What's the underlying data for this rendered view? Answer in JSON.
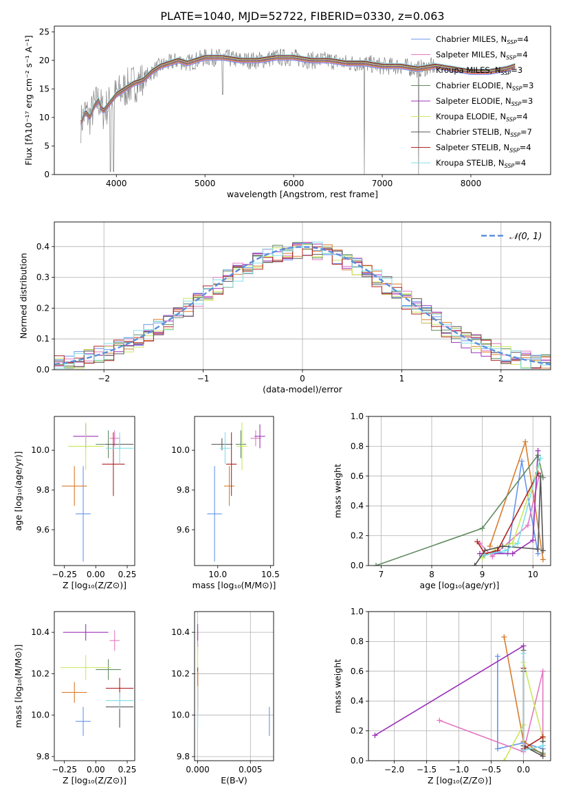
{
  "figure": {
    "title": "PLATE=1040, MJD=52722, FIBERID=0330, z=0.063"
  },
  "chart_data": [
    {
      "id": "spectrum",
      "type": "line",
      "xlabel": "wavelength [Angstrom, rest frame]",
      "ylabel": "Flux [fλ10⁻¹⁷ erg cm⁻² s⁻¹ A⁻¹]",
      "xlim": [
        3300,
        8900
      ],
      "ylim": [
        0,
        26
      ],
      "xticks": [
        "4000",
        "5000",
        "6000",
        "7000",
        "8000"
      ],
      "xtick_values": [
        4000,
        5000,
        6000,
        7000,
        8000
      ],
      "yticks": [
        "0",
        "5",
        "10",
        "15",
        "20",
        "25"
      ],
      "ytick_values": [
        0,
        5,
        10,
        15,
        20,
        25
      ],
      "grid": false,
      "legend_position": "top-right",
      "data_x": [
        3600,
        3650,
        3700,
        3750,
        3800,
        3850,
        3900,
        3950,
        4000,
        4100,
        4200,
        4300,
        4400,
        4500,
        4600,
        4700,
        4800,
        4900,
        5000,
        5200,
        5400,
        5600,
        5800,
        6000,
        6200,
        6400,
        6600,
        6800,
        7000,
        7200,
        7400,
        7600,
        7800,
        8000,
        8200,
        8400,
        8500
      ],
      "data_y": [
        9,
        11,
        10,
        12,
        13,
        11,
        12,
        13,
        14,
        15,
        16,
        16.5,
        18,
        19,
        19.5,
        20,
        19.5,
        20,
        20.5,
        20.5,
        20,
        20,
        20.5,
        20.5,
        20,
        20,
        19.5,
        19.5,
        19,
        19,
        18.5,
        19,
        18.5,
        18,
        18,
        18.5,
        19
      ],
      "series": [
        {
          "name": "Chabrier MILES, N",
          "sub": "SSP",
          "suffix": "=4",
          "color": "#6495ed"
        },
        {
          "name": "Salpeter MILES, N",
          "sub": "SSP",
          "suffix": "=4",
          "color": "#e377c2"
        },
        {
          "name": "Kroupa MILES, N",
          "sub": "SSP",
          "suffix": "=3",
          "color": "#d97b2b"
        },
        {
          "name": "Chabrier ELODIE, N",
          "sub": "SSP",
          "suffix": "=3",
          "color": "#5f8a5f"
        },
        {
          "name": "Salpeter ELODIE, N",
          "sub": "SSP",
          "suffix": "=3",
          "color": "#9b30b8"
        },
        {
          "name": "Kroupa ELODIE, N",
          "sub": "SSP",
          "suffix": "=4",
          "color": "#c8e85a"
        },
        {
          "name": "Chabrier STELIB, N",
          "sub": "SSP",
          "suffix": "=7",
          "color": "#555555"
        },
        {
          "name": "Salpeter STELIB, N",
          "sub": "SSP",
          "suffix": "=4",
          "color": "#b22222"
        },
        {
          "name": "Kroupa STELIB, N",
          "sub": "SSP",
          "suffix": "=4",
          "color": "#7fdfe8"
        }
      ],
      "data_color": "#808080"
    },
    {
      "id": "residuals",
      "type": "line",
      "xlabel": "(data-model)/error",
      "ylabel": "Normed distribution",
      "xlim": [
        -2.5,
        2.5
      ],
      "ylim": [
        0,
        0.48
      ],
      "xticks": [
        "−2",
        "−1",
        "0",
        "1",
        "2"
      ],
      "xtick_values": [
        -2,
        -1,
        0,
        1,
        2
      ],
      "yticks": [
        "0.0",
        "0.1",
        "0.2",
        "0.3",
        "0.4"
      ],
      "ytick_values": [
        0,
        0.1,
        0.2,
        0.3,
        0.4
      ],
      "grid": true,
      "legend": "𝒩(0, 1)",
      "legend_position": "top-right",
      "normal_curve_color": "#5b8fdb"
    },
    {
      "id": "age-vs-Z",
      "type": "scatter",
      "xlabel": "Z [log₁₀(Z/Z⊙)]",
      "ylabel": "age  [log₁₀(age/yr)]",
      "xlim": [
        -0.33,
        0.31
      ],
      "ylim": [
        9.42,
        10.17
      ],
      "xticks": [
        "−0.25",
        "0.00",
        "0.25"
      ],
      "xtick_values": [
        -0.25,
        0,
        0.25
      ],
      "yticks": [
        "9.6",
        "9.8",
        "10.0"
      ],
      "ytick_values": [
        9.6,
        9.8,
        10.0
      ],
      "grid": false,
      "points": [
        {
          "x": -0.1,
          "y": 9.68,
          "xerr": 0.06,
          "yerr": 0.24,
          "color": "#6495ed"
        },
        {
          "x": 0.15,
          "y": 10.06,
          "xerr": 0.04,
          "yerr": 0.04,
          "color": "#e377c2"
        },
        {
          "x": -0.17,
          "y": 9.82,
          "xerr": 0.1,
          "yerr": 0.1,
          "color": "#d97b2b"
        },
        {
          "x": 0.1,
          "y": 10.03,
          "xerr": 0.1,
          "yerr": 0.07,
          "color": "#5f8a5f"
        },
        {
          "x": -0.08,
          "y": 10.07,
          "xerr": 0.1,
          "yerr": 0.06,
          "color": "#9b30b8"
        },
        {
          "x": -0.08,
          "y": 10.02,
          "xerr": 0.14,
          "yerr": 0.12,
          "color": "#c8e85a"
        },
        {
          "x": 0.19,
          "y": 10.03,
          "xerr": 0.11,
          "yerr": 0.03,
          "color": "#555555"
        },
        {
          "x": 0.14,
          "y": 9.93,
          "xerr": 0.09,
          "yerr": 0.16,
          "color": "#b22222"
        },
        {
          "x": 0.19,
          "y": 10.01,
          "xerr": 0.11,
          "yerr": 0.08,
          "color": "#7fdfe8"
        }
      ]
    },
    {
      "id": "age-vs-mass",
      "type": "scatter",
      "xlabel": "mass [log₁₀(M/M⊙)]",
      "ylabel": "",
      "xlim": [
        9.78,
        10.53
      ],
      "ylim": [
        9.42,
        10.17
      ],
      "xticks": [
        "10.0",
        "10.5"
      ],
      "xtick_values": [
        10.0,
        10.5
      ],
      "yticks": [
        "9.6",
        "9.8",
        "10.0"
      ],
      "ytick_values": [
        9.6,
        9.8,
        10.0
      ],
      "grid": false,
      "points": [
        {
          "x": 9.97,
          "y": 9.68,
          "xerr": 0.07,
          "yerr": 0.24,
          "color": "#6495ed"
        },
        {
          "x": 10.36,
          "y": 10.06,
          "xerr": 0.05,
          "yerr": 0.04,
          "color": "#e377c2"
        },
        {
          "x": 10.11,
          "y": 9.82,
          "xerr": 0.05,
          "yerr": 0.1,
          "color": "#d97b2b"
        },
        {
          "x": 10.22,
          "y": 10.03,
          "xerr": 0.05,
          "yerr": 0.07,
          "color": "#5f8a5f"
        },
        {
          "x": 10.4,
          "y": 10.07,
          "xerr": 0.05,
          "yerr": 0.06,
          "color": "#9b30b8"
        },
        {
          "x": 10.23,
          "y": 10.02,
          "xerr": 0.05,
          "yerr": 0.12,
          "color": "#c8e85a"
        },
        {
          "x": 10.04,
          "y": 10.03,
          "xerr": 0.1,
          "yerr": 0.03,
          "color": "#555555"
        },
        {
          "x": 10.13,
          "y": 9.93,
          "xerr": 0.05,
          "yerr": 0.16,
          "color": "#b22222"
        },
        {
          "x": 10.07,
          "y": 10.01,
          "xerr": 0.05,
          "yerr": 0.08,
          "color": "#7fdfe8"
        }
      ]
    },
    {
      "id": "weight-vs-age",
      "type": "line",
      "xlabel": "age  [log₁₀(age/yr)]",
      "ylabel": "mass weight",
      "xlim": [
        6.75,
        10.35
      ],
      "ylim": [
        0,
        1.0
      ],
      "xticks": [
        "7",
        "8",
        "9",
        "10"
      ],
      "xtick_values": [
        7,
        8,
        9,
        10
      ],
      "yticks": [
        "0.0",
        "0.2",
        "0.4",
        "0.6",
        "0.8",
        "1.0"
      ],
      "ytick_values": [
        0,
        0.2,
        0.4,
        0.6,
        0.8,
        1.0
      ],
      "grid": true,
      "series": [
        {
          "color": "#6495ed",
          "x": [
            9.0,
            9.25,
            9.5,
            9.78,
            10.1
          ],
          "y": [
            0.06,
            0.09,
            0.08,
            0.7,
            0.08
          ]
        },
        {
          "color": "#e377c2",
          "x": [
            8.95,
            9.2,
            9.9,
            10.12
          ],
          "y": [
            0.15,
            0.06,
            0.27,
            0.6
          ]
        },
        {
          "color": "#d97b2b",
          "x": [
            9.15,
            9.85,
            10.2
          ],
          "y": [
            0.13,
            0.83,
            0.04
          ]
        },
        {
          "color": "#5f8a5f",
          "x": [
            6.9,
            9.0,
            10.1,
            10.2
          ],
          "y": [
            0.0,
            0.25,
            0.74,
            0.59
          ]
        },
        {
          "color": "#9b30b8",
          "x": [
            8.95,
            9.6,
            10.0,
            10.1
          ],
          "y": [
            0.08,
            0.08,
            0.17,
            0.77
          ]
        },
        {
          "color": "#c8e85a",
          "x": [
            9.0,
            9.3,
            9.6,
            10.1
          ],
          "y": [
            0.05,
            0.12,
            0.15,
            0.66
          ]
        },
        {
          "color": "#555555",
          "x": [
            8.85,
            9.05,
            9.4,
            10.1,
            10.15,
            10.2
          ],
          "y": [
            0.0,
            0.1,
            0.13,
            0.11,
            0.6,
            0.1
          ]
        },
        {
          "color": "#b22222",
          "x": [
            8.9,
            9.05,
            9.3,
            10.1
          ],
          "y": [
            0.16,
            0.08,
            0.1,
            0.62
          ]
        },
        {
          "color": "#7fdfe8",
          "x": [
            9.05,
            9.45,
            9.7,
            10.15
          ],
          "y": [
            0.07,
            0.1,
            0.15,
            0.72
          ]
        }
      ]
    },
    {
      "id": "mass-vs-Z",
      "type": "scatter",
      "xlabel": "Z [log₁₀(Z/Z⊙)]",
      "ylabel": "mass [log₁₀(M/M⊙)]",
      "xlim": [
        -0.33,
        0.31
      ],
      "ylim": [
        9.78,
        10.5
      ],
      "xticks": [
        "−0.25",
        "0.00",
        "0.25"
      ],
      "xtick_values": [
        -0.25,
        0,
        0.25
      ],
      "yticks": [
        "9.8",
        "10.0",
        "10.2",
        "10.4"
      ],
      "ytick_values": [
        9.8,
        10.0,
        10.2,
        10.4
      ],
      "grid": false,
      "points": [
        {
          "x": -0.1,
          "y": 9.97,
          "xerr": 0.06,
          "yerr": 0.07,
          "color": "#6495ed"
        },
        {
          "x": 0.15,
          "y": 10.36,
          "xerr": 0.04,
          "yerr": 0.05,
          "color": "#e377c2"
        },
        {
          "x": -0.17,
          "y": 10.11,
          "xerr": 0.1,
          "yerr": 0.05,
          "color": "#d97b2b"
        },
        {
          "x": 0.1,
          "y": 10.22,
          "xerr": 0.1,
          "yerr": 0.05,
          "color": "#5f8a5f"
        },
        {
          "x": -0.08,
          "y": 10.4,
          "xerr": 0.18,
          "yerr": 0.04,
          "color": "#9b30b8"
        },
        {
          "x": -0.08,
          "y": 10.23,
          "xerr": 0.2,
          "yerr": 0.06,
          "color": "#c8e85a"
        },
        {
          "x": 0.19,
          "y": 10.04,
          "xerr": 0.11,
          "yerr": 0.1,
          "color": "#555555"
        },
        {
          "x": 0.19,
          "y": 10.13,
          "xerr": 0.11,
          "yerr": 0.05,
          "color": "#b22222"
        },
        {
          "x": 0.19,
          "y": 10.07,
          "xerr": 0.11,
          "yerr": 0.04,
          "color": "#7fdfe8"
        }
      ]
    },
    {
      "id": "mass-vs-EBV",
      "type": "scatter",
      "xlabel": "E(B-V)",
      "ylabel": "",
      "xlim": [
        -0.0003,
        0.0072
      ],
      "ylim": [
        9.78,
        10.5
      ],
      "xticks": [
        "0.000",
        "0.005"
      ],
      "xtick_values": [
        0,
        0.005
      ],
      "yticks": [
        "9.8",
        "10.0",
        "10.2",
        "10.4"
      ],
      "ytick_values": [
        9.8,
        10.0,
        10.2,
        10.4
      ],
      "grid": true,
      "points": [
        {
          "x": 0.0,
          "y": 10.36,
          "xerr": 0,
          "yerr": 0.05,
          "color": "#e377c2"
        },
        {
          "x": 0.0,
          "y": 10.4,
          "xerr": 0,
          "yerr": 0.04,
          "color": "#9b30b8"
        },
        {
          "x": 0.0,
          "y": 10.23,
          "xerr": 0,
          "yerr": 0.1,
          "color": "#c8e85a"
        },
        {
          "x": 0.0,
          "y": 10.13,
          "xerr": 0,
          "yerr": 0.1,
          "color": "#b22222"
        },
        {
          "x": 0.0,
          "y": 10.11,
          "xerr": 0,
          "yerr": 0.1,
          "color": "#d97b2b"
        },
        {
          "x": 0.0,
          "y": 10.04,
          "xerr": 0,
          "yerr": 0.1,
          "color": "#7fdfe8"
        },
        {
          "x": 0.0068,
          "y": 9.97,
          "xerr": 0,
          "yerr": 0.07,
          "color": "#6495ed"
        }
      ]
    },
    {
      "id": "weight-vs-Z",
      "type": "line",
      "xlabel": "Z [log₁₀(Z/Z⊙)]",
      "ylabel": "mass weight",
      "xlim": [
        -2.4,
        0.42
      ],
      "ylim": [
        0,
        1.0
      ],
      "xticks": [
        "−2.0",
        "−1.5",
        "−1.0",
        "−0.5",
        "0.0"
      ],
      "xtick_values": [
        -2.0,
        -1.5,
        -1.0,
        -0.5,
        0.0
      ],
      "yticks": [
        "0.0",
        "0.2",
        "0.4",
        "0.6",
        "0.8",
        "1.0"
      ],
      "ytick_values": [
        0,
        0.2,
        0.4,
        0.6,
        0.8,
        1.0
      ],
      "grid": true,
      "series": [
        {
          "color": "#6495ed",
          "x": [
            -0.4,
            -0.4,
            0.0,
            0.3,
            0.3
          ],
          "y": [
            0.7,
            0.08,
            0.12,
            0.08,
            0.1
          ]
        },
        {
          "color": "#e377c2",
          "x": [
            -1.3,
            0.0,
            0.3,
            0.3
          ],
          "y": [
            0.27,
            0.06,
            0.6,
            0.15
          ]
        },
        {
          "color": "#d97b2b",
          "x": [
            -0.3,
            0.0,
            0.3
          ],
          "y": [
            0.83,
            0.13,
            0.04
          ]
        },
        {
          "color": "#5f8a5f",
          "x": [
            0.0,
            0.0,
            0.3
          ],
          "y": [
            0.74,
            0.1,
            0.05
          ]
        },
        {
          "color": "#9b30b8",
          "x": [
            -2.3,
            0.0,
            0.0
          ],
          "y": [
            0.17,
            0.77,
            0.08
          ]
        },
        {
          "color": "#c8e85a",
          "x": [
            -0.3,
            0.0,
            0.0,
            0.3
          ],
          "y": [
            0.0,
            0.24,
            0.66,
            0.15
          ]
        },
        {
          "color": "#555555",
          "x": [
            0.0,
            0.0,
            0.3,
            0.3
          ],
          "y": [
            0.6,
            0.1,
            0.03,
            0.13
          ]
        },
        {
          "color": "#b22222",
          "x": [
            0.0,
            0.0,
            0.3
          ],
          "y": [
            0.62,
            0.08,
            0.16
          ]
        },
        {
          "color": "#7fdfe8",
          "x": [
            0.0,
            0.0,
            0.3
          ],
          "y": [
            0.72,
            0.07,
            0.1
          ]
        }
      ]
    }
  ]
}
